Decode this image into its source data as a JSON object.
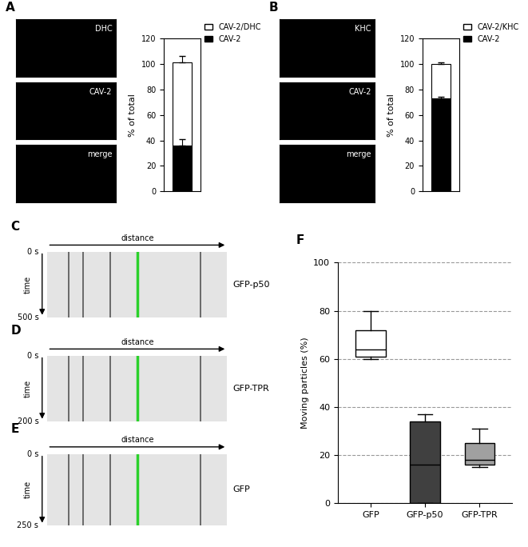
{
  "figure": {
    "panels": {
      "A": {
        "letter": "A",
        "images": [
          "DHC",
          "CAV-2",
          "merge"
        ]
      },
      "B": {
        "letter": "B",
        "images": [
          "KHC",
          "CAV-2",
          "merge"
        ]
      },
      "C": {
        "letter": "C",
        "label": "GFP-p50",
        "x_label": "distance",
        "y_label": "time",
        "start": "0 s",
        "end": "500 s"
      },
      "D": {
        "letter": "D",
        "label": "GFP-TPR",
        "x_label": "distance",
        "y_label": "time",
        "start": "0 s",
        "end": "200 s"
      },
      "E": {
        "letter": "E",
        "label": "GFP",
        "x_label": "distance",
        "y_label": "time",
        "start": "0 s",
        "end": "250 s"
      },
      "F": {
        "letter": "F"
      }
    }
  },
  "chart_data": [
    {
      "type": "bar",
      "stacked": true,
      "ylabel": "% of total",
      "categories": [
        null
      ],
      "series": [
        {
          "name": "CAV-2",
          "color": "#000000",
          "values": [
            36
          ],
          "error": [
            5
          ]
        },
        {
          "name": "CAV-2/DHC",
          "color": "#ffffff",
          "values": [
            65
          ],
          "error": [
            5
          ]
        }
      ],
      "ylim": [
        0,
        120
      ],
      "yticks": [
        0,
        20,
        40,
        60,
        80,
        100,
        120
      ],
      "legend": "upper left",
      "grid": false
    },
    {
      "type": "bar",
      "stacked": true,
      "ylabel": "% of total",
      "categories": [
        null
      ],
      "series": [
        {
          "name": "CAV-2",
          "color": "#000000",
          "values": [
            73
          ],
          "error": [
            1
          ]
        },
        {
          "name": "CAV-2/KHC",
          "color": "#ffffff",
          "values": [
            27
          ],
          "error": [
            1
          ]
        }
      ],
      "ylim": [
        0,
        120
      ],
      "yticks": [
        0,
        20,
        40,
        60,
        80,
        100,
        120
      ],
      "legend": "upper left",
      "grid": false
    },
    {
      "type": "box",
      "ylabel": "Moving particles (%)",
      "categories": [
        "GFP",
        "GFP-p50",
        "GFP-TPR"
      ],
      "colors": [
        "#ffffff",
        "#404040",
        "#a0a0a0"
      ],
      "whisker_low": [
        60,
        0,
        15
      ],
      "q1": [
        61,
        0,
        16
      ],
      "median": [
        64,
        16,
        18
      ],
      "q3": [
        72,
        34,
        25
      ],
      "whisker_high": [
        80,
        37,
        31
      ],
      "ylim": [
        0,
        100
      ],
      "yticks": [
        0,
        20,
        40,
        60,
        80,
        100
      ],
      "grid": true
    }
  ]
}
